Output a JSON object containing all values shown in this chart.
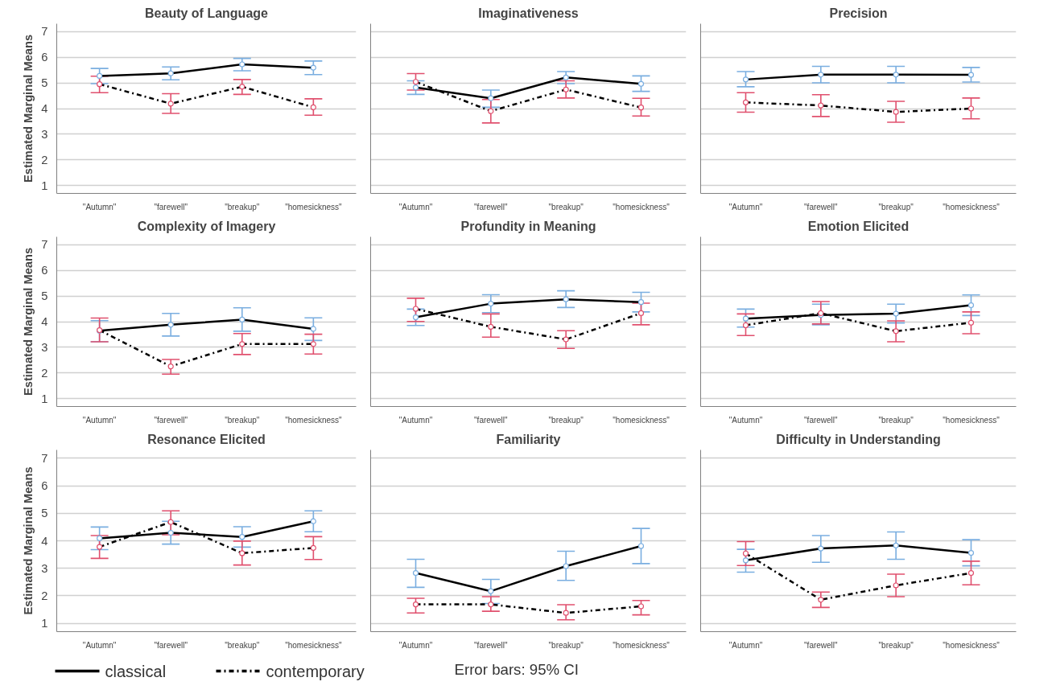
{
  "chart_data": [
    {
      "type": "line",
      "title": "Beauty of Language",
      "ylabel": "Estimated Marginal Means",
      "categories": [
        "\"Autumn\"",
        "\"farewell\"",
        "\"breakup\"",
        "\"homesickness\""
      ],
      "ylim": [
        0.7,
        7.3
      ],
      "yticks": [
        1,
        2,
        3,
        4,
        5,
        6,
        7
      ],
      "grid": "y",
      "marker": "circle",
      "series": [
        {
          "color": "#000000",
          "line_style": "solid",
          "colors": [
            "#7aaee0",
            "#7aaee0",
            "#7aaee0",
            "#7aaee0"
          ],
          "values": [
            5.27,
            5.37,
            5.72,
            5.59
          ],
          "errors": [
            [
              4.97,
              5.56
            ],
            [
              5.12,
              5.62
            ],
            [
              5.47,
              5.95
            ],
            [
              5.32,
              5.85
            ]
          ]
        },
        {
          "color": "#000000",
          "line_style": "dashdot",
          "colors": [
            "#e0506e",
            "#e0506e",
            "#e0506e",
            "#e0506e"
          ],
          "values": [
            4.95,
            4.19,
            4.85,
            4.05
          ],
          "errors": [
            [
              4.62,
              5.26
            ],
            [
              3.81,
              4.58
            ],
            [
              4.55,
              5.13
            ],
            [
              3.74,
              4.38
            ]
          ]
        }
      ]
    },
    {
      "type": "line",
      "title": "Imaginativeness",
      "categories": [
        "\"Autumn\"",
        "\"farewell\"",
        "\"breakup\"",
        "\"homesickness\""
      ],
      "ylim": [
        0.7,
        7.3
      ],
      "yticks": [
        1,
        2,
        3,
        4,
        5,
        6,
        7
      ],
      "grid": "y",
      "marker": "circle",
      "tick_labels": "x",
      "series": [
        {
          "color": "#000000",
          "line_style": "solid",
          "colors": [
            "#7aaee0",
            "#7aaee0",
            "#7aaee0",
            "#7aaee0"
          ],
          "values": [
            4.82,
            4.4,
            5.21,
            4.96
          ],
          "errors": [
            [
              4.55,
              5.08
            ],
            [
              4.05,
              4.72
            ],
            [
              4.97,
              5.44
            ],
            [
              4.67,
              5.27
            ]
          ]
        },
        {
          "color": "#000000",
          "line_style": "dashdot",
          "colors": [
            "#e0506e",
            "#e0506e",
            "#e0506e",
            "#e0506e"
          ],
          "values": [
            5.04,
            3.9,
            4.74,
            4.04
          ],
          "errors": [
            [
              4.72,
              5.36
            ],
            [
              3.44,
              4.35
            ],
            [
              4.41,
              5.08
            ],
            [
              3.71,
              4.4
            ]
          ]
        }
      ]
    },
    {
      "type": "line",
      "title": "Precision",
      "categories": [
        "\"Autumn\"",
        "\"farewell\"",
        "\"breakup\"",
        "\"homesickness\""
      ],
      "ylim": [
        0.7,
        7.3
      ],
      "yticks": [
        1,
        2,
        3,
        4,
        5,
        6,
        7
      ],
      "grid": "y",
      "marker": "circle",
      "tick_labels": "x",
      "series": [
        {
          "color": "#000000",
          "line_style": "solid",
          "colors": [
            "#7aaee0",
            "#7aaee0",
            "#7aaee0",
            "#7aaee0"
          ],
          "values": [
            5.13,
            5.32,
            5.32,
            5.31
          ],
          "errors": [
            [
              4.85,
              5.44
            ],
            [
              5.0,
              5.64
            ],
            [
              5.0,
              5.64
            ],
            [
              5.03,
              5.6
            ]
          ]
        },
        {
          "color": "#000000",
          "line_style": "dashdot",
          "colors": [
            "#e0506e",
            "#e0506e",
            "#e0506e",
            "#e0506e"
          ],
          "values": [
            4.24,
            4.12,
            3.87,
            4.0
          ],
          "errors": [
            [
              3.86,
              4.62
            ],
            [
              3.69,
              4.54
            ],
            [
              3.47,
              4.28
            ],
            [
              3.6,
              4.41
            ]
          ]
        }
      ]
    },
    {
      "type": "line",
      "title": "Complexity of Imagery",
      "ylabel": "Estimated Marginal Means",
      "categories": [
        "\"Autumn\"",
        "\"farewell\"",
        "\"breakup\"",
        "\"homesickness\""
      ],
      "ylim": [
        0.7,
        7.3
      ],
      "yticks": [
        1,
        2,
        3,
        4,
        5,
        6,
        7
      ],
      "grid": "y",
      "marker": "circle",
      "series": [
        {
          "color": "#000000",
          "line_style": "solid",
          "colors": [
            "#7aaee0",
            "#7aaee0",
            "#7aaee0",
            "#7aaee0"
          ],
          "values": [
            3.65,
            3.88,
            4.08,
            3.72
          ],
          "errors": [
            [
              3.22,
              4.04
            ],
            [
              3.44,
              4.32
            ],
            [
              3.63,
              4.54
            ],
            [
              3.27,
              4.15
            ]
          ]
        },
        {
          "color": "#000000",
          "line_style": "dashdot",
          "colors": [
            "#e0506e",
            "#e0506e",
            "#e0506e",
            "#e0506e"
          ],
          "values": [
            3.67,
            2.26,
            3.13,
            3.13
          ],
          "errors": [
            [
              3.22,
              4.14
            ],
            [
              1.96,
              2.53
            ],
            [
              2.72,
              3.54
            ],
            [
              2.74,
              3.51
            ]
          ]
        }
      ]
    },
    {
      "type": "line",
      "title": "Profundity in Meaning",
      "categories": [
        "\"Autumn\"",
        "\"farewell\"",
        "\"breakup\"",
        "\"homesickness\""
      ],
      "ylim": [
        0.7,
        7.3
      ],
      "yticks": [
        1,
        2,
        3,
        4,
        5,
        6,
        7
      ],
      "grid": "y",
      "marker": "circle",
      "tick_labels": "x",
      "series": [
        {
          "color": "#000000",
          "line_style": "solid",
          "colors": [
            "#7aaee0",
            "#7aaee0",
            "#7aaee0",
            "#7aaee0"
          ],
          "values": [
            4.17,
            4.7,
            4.87,
            4.76
          ],
          "errors": [
            [
              3.85,
              4.49
            ],
            [
              4.35,
              5.05
            ],
            [
              4.55,
              5.2
            ],
            [
              4.38,
              5.14
            ]
          ]
        },
        {
          "color": "#000000",
          "line_style": "dashdot",
          "colors": [
            "#e0506e",
            "#e0506e",
            "#e0506e",
            "#e0506e"
          ],
          "values": [
            4.5,
            3.8,
            3.31,
            4.33
          ],
          "errors": [
            [
              4.01,
              4.91
            ],
            [
              3.4,
              4.3
            ],
            [
              2.96,
              3.65
            ],
            [
              3.88,
              4.72
            ]
          ]
        }
      ]
    },
    {
      "type": "line",
      "title": "Emotion Elicited",
      "categories": [
        "\"Autumn\"",
        "\"farewell\"",
        "\"breakup\"",
        "\"homesickness\""
      ],
      "ylim": [
        0.7,
        7.3
      ],
      "yticks": [
        1,
        2,
        3,
        4,
        5,
        6,
        7
      ],
      "grid": "y",
      "marker": "circle",
      "tick_labels": "x",
      "series": [
        {
          "color": "#000000",
          "line_style": "solid",
          "colors": [
            "#7aaee0",
            "#7aaee0",
            "#7aaee0",
            "#7aaee0"
          ],
          "values": [
            4.12,
            4.26,
            4.31,
            4.64
          ],
          "errors": [
            [
              3.79,
              4.49
            ],
            [
              3.88,
              4.68
            ],
            [
              3.95,
              4.68
            ],
            [
              4.24,
              5.04
            ]
          ]
        },
        {
          "color": "#000000",
          "line_style": "dashdot",
          "colors": [
            "#e0506e",
            "#e0506e",
            "#e0506e",
            "#e0506e"
          ],
          "values": [
            3.86,
            4.33,
            3.63,
            3.96
          ],
          "errors": [
            [
              3.46,
              4.3
            ],
            [
              3.91,
              4.78
            ],
            [
              3.22,
              4.03
            ],
            [
              3.53,
              4.38
            ]
          ]
        }
      ]
    },
    {
      "type": "line",
      "title": "Resonance Elicited",
      "ylabel": "Estimated Marginal Means",
      "categories": [
        "\"Autumn\"",
        "\"farewell\"",
        "\"breakup\"",
        "\"homesickness\""
      ],
      "ylim": [
        0.7,
        7.3
      ],
      "yticks": [
        1,
        2,
        3,
        4,
        5,
        6,
        7
      ],
      "grid": "y",
      "marker": "circle",
      "legend": "bottom",
      "annotations": [
        "Error bars: 95% CI"
      ],
      "series": [
        {
          "name": "classical",
          "color": "#000000",
          "line_style": "solid",
          "colors": [
            "#7aaee0",
            "#7aaee0",
            "#7aaee0",
            "#7aaee0"
          ],
          "values": [
            4.09,
            4.29,
            4.14,
            4.71
          ],
          "errors": [
            [
              3.68,
              4.5
            ],
            [
              3.88,
              4.71
            ],
            [
              3.77,
              4.51
            ],
            [
              4.33,
              5.09
            ]
          ]
        },
        {
          "name": "contemporary",
          "color": "#000000",
          "line_style": "dashdot",
          "colors": [
            "#e0506e",
            "#e0506e",
            "#e0506e",
            "#e0506e"
          ],
          "values": [
            3.78,
            4.68,
            3.55,
            3.74
          ],
          "errors": [
            [
              3.36,
              4.19
            ],
            [
              4.22,
              5.09
            ],
            [
              3.12,
              3.99
            ],
            [
              3.32,
              4.15
            ]
          ]
        }
      ]
    },
    {
      "type": "line",
      "title": "Familiarity",
      "categories": [
        "\"Autumn\"",
        "\"farewell\"",
        "\"breakup\"",
        "\"homesickness\""
      ],
      "ylim": [
        0.7,
        7.3
      ],
      "yticks": [
        1,
        2,
        3,
        4,
        5,
        6,
        7
      ],
      "grid": "y",
      "marker": "circle",
      "tick_labels": "x",
      "series": [
        {
          "color": "#000000",
          "line_style": "solid",
          "colors": [
            "#7aaee0",
            "#7aaee0",
            "#7aaee0",
            "#7aaee0"
          ],
          "values": [
            2.83,
            2.17,
            3.08,
            3.81
          ],
          "errors": [
            [
              2.31,
              3.33
            ],
            [
              1.72,
              2.6
            ],
            [
              2.56,
              3.62
            ],
            [
              3.17,
              4.45
            ]
          ]
        },
        {
          "color": "#000000",
          "line_style": "dashdot",
          "colors": [
            "#e0506e",
            "#e0506e",
            "#e0506e",
            "#e0506e"
          ],
          "values": [
            1.69,
            1.69,
            1.38,
            1.62
          ],
          "errors": [
            [
              1.38,
              1.91
            ],
            [
              1.44,
              1.97
            ],
            [
              1.13,
              1.68
            ],
            [
              1.31,
              1.83
            ]
          ]
        }
      ]
    },
    {
      "type": "line",
      "title": "Difficulty in Understanding",
      "categories": [
        "\"Autumn\"",
        "\"farewell\"",
        "\"breakup\"",
        "\"homesickness\""
      ],
      "ylim": [
        0.7,
        7.3
      ],
      "yticks": [
        1,
        2,
        3,
        4,
        5,
        6,
        7
      ],
      "grid": "y",
      "marker": "circle",
      "tick_labels": "x",
      "series": [
        {
          "color": "#000000",
          "line_style": "solid",
          "colors": [
            "#7aaee0",
            "#7aaee0",
            "#7aaee0",
            "#7aaee0"
          ],
          "values": [
            3.29,
            3.72,
            3.83,
            3.56
          ],
          "errors": [
            [
              2.86,
              3.69
            ],
            [
              3.22,
              4.19
            ],
            [
              3.33,
              4.32
            ],
            [
              3.09,
              4.04
            ]
          ]
        },
        {
          "color": "#000000",
          "line_style": "dashdot",
          "colors": [
            "#e0506e",
            "#e0506e",
            "#e0506e",
            "#e0506e"
          ],
          "values": [
            3.54,
            1.86,
            2.38,
            2.83
          ],
          "errors": [
            [
              3.1,
              3.97
            ],
            [
              1.58,
              2.14
            ],
            [
              1.97,
              2.79
            ],
            [
              2.4,
              3.26
            ]
          ]
        }
      ]
    }
  ]
}
